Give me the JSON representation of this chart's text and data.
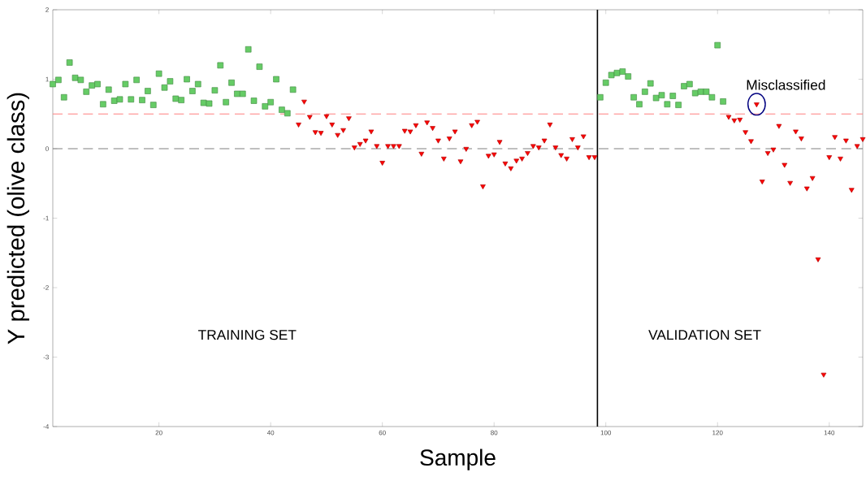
{
  "chart_data": {
    "type": "scatter",
    "xlabel": "Sample",
    "ylabel": "Y predicted  (olive class)",
    "xlim": [
      1,
      146
    ],
    "ylim": [
      -4,
      2
    ],
    "xticks": [
      20,
      40,
      60,
      80,
      100,
      120,
      140
    ],
    "yticks": [
      -4,
      -3,
      -2,
      -1,
      0,
      1,
      2
    ],
    "grid": false,
    "series": [
      {
        "color": "#66cc66",
        "marker": "square",
        "x": [
          1,
          2,
          3,
          4,
          5,
          6,
          7,
          8,
          9,
          10,
          11,
          12,
          13,
          14,
          15,
          16,
          17,
          18,
          19,
          20,
          21,
          22,
          23,
          24,
          25,
          26,
          27,
          28,
          29,
          30,
          31,
          32,
          33,
          34,
          35,
          36,
          37,
          38,
          39,
          40,
          41,
          42,
          43,
          44,
          99,
          100,
          101,
          102,
          103,
          104,
          105,
          106,
          107,
          108,
          109,
          110,
          111,
          112,
          113,
          114,
          115,
          116,
          117,
          118,
          119,
          120,
          121
        ],
        "values": [
          0.93,
          0.99,
          0.74,
          1.24,
          1.02,
          0.99,
          0.82,
          0.91,
          0.93,
          0.64,
          0.85,
          0.69,
          0.71,
          0.93,
          0.71,
          0.99,
          0.7,
          0.83,
          0.63,
          1.08,
          0.88,
          0.97,
          0.72,
          0.7,
          1.0,
          0.83,
          0.93,
          0.66,
          0.65,
          0.84,
          1.2,
          0.67,
          0.95,
          0.79,
          0.79,
          1.43,
          0.69,
          1.18,
          0.61,
          0.67,
          1.0,
          0.56,
          0.51,
          0.85,
          0.74,
          0.95,
          1.06,
          1.09,
          1.11,
          1.04,
          0.74,
          0.64,
          0.82,
          0.94,
          0.73,
          0.77,
          0.64,
          0.76,
          0.63,
          0.9,
          0.93,
          0.8,
          0.82,
          0.82,
          0.74,
          1.49,
          0.68
        ]
      },
      {
        "color": "#ff0000",
        "marker": "triangle",
        "x": [
          45,
          46,
          47,
          48,
          49,
          50,
          51,
          52,
          53,
          54,
          55,
          56,
          57,
          58,
          59,
          60,
          61,
          62,
          63,
          64,
          65,
          66,
          67,
          68,
          69,
          70,
          71,
          72,
          73,
          74,
          75,
          76,
          77,
          78,
          79,
          80,
          81,
          82,
          83,
          84,
          85,
          86,
          87,
          88,
          89,
          90,
          91,
          92,
          93,
          94,
          95,
          96,
          97,
          98,
          122,
          123,
          124,
          125,
          126,
          127,
          128,
          129,
          130,
          131,
          132,
          133,
          134,
          135,
          136,
          137,
          138,
          139,
          140,
          141,
          142,
          143,
          144,
          145,
          146
        ],
        "values": [
          0.35,
          0.68,
          0.46,
          0.24,
          0.23,
          0.47,
          0.35,
          0.2,
          0.27,
          0.44,
          0.02,
          0.07,
          0.12,
          0.25,
          0.04,
          -0.2,
          0.04,
          0.04,
          0.04,
          0.26,
          0.25,
          0.34,
          -0.07,
          0.38,
          0.3,
          0.12,
          -0.14,
          0.15,
          0.25,
          -0.18,
          0.0,
          0.34,
          0.39,
          -0.54,
          -0.1,
          -0.08,
          0.1,
          -0.21,
          -0.28,
          -0.17,
          -0.14,
          -0.06,
          0.04,
          0.02,
          0.12,
          0.35,
          0.02,
          -0.09,
          -0.14,
          0.14,
          0.02,
          0.18,
          -0.12,
          -0.12,
          0.46,
          0.41,
          0.42,
          0.24,
          0.11,
          0.64,
          -0.47,
          -0.06,
          -0.01,
          0.33,
          -0.23,
          -0.49,
          0.25,
          0.15,
          -0.57,
          -0.42,
          -1.59,
          -3.25,
          -0.12,
          0.17,
          -0.14,
          0.12,
          -0.59,
          0.04,
          0.14
        ]
      }
    ],
    "ref_lines": [
      {
        "axis": "y",
        "value": 0.5,
        "color": "#ff8080",
        "line_style": "dashed"
      },
      {
        "axis": "y",
        "value": 0,
        "color": "#808080",
        "line_style": "dashed"
      },
      {
        "axis": "x",
        "value": 98.5,
        "color": "#000000",
        "line_style": "solid"
      }
    ],
    "annotations": [
      "TRAINING SET",
      "VALIDATION SET",
      {
        "text": "Misclassified",
        "x": 127,
        "y": 0.64
      }
    ]
  }
}
